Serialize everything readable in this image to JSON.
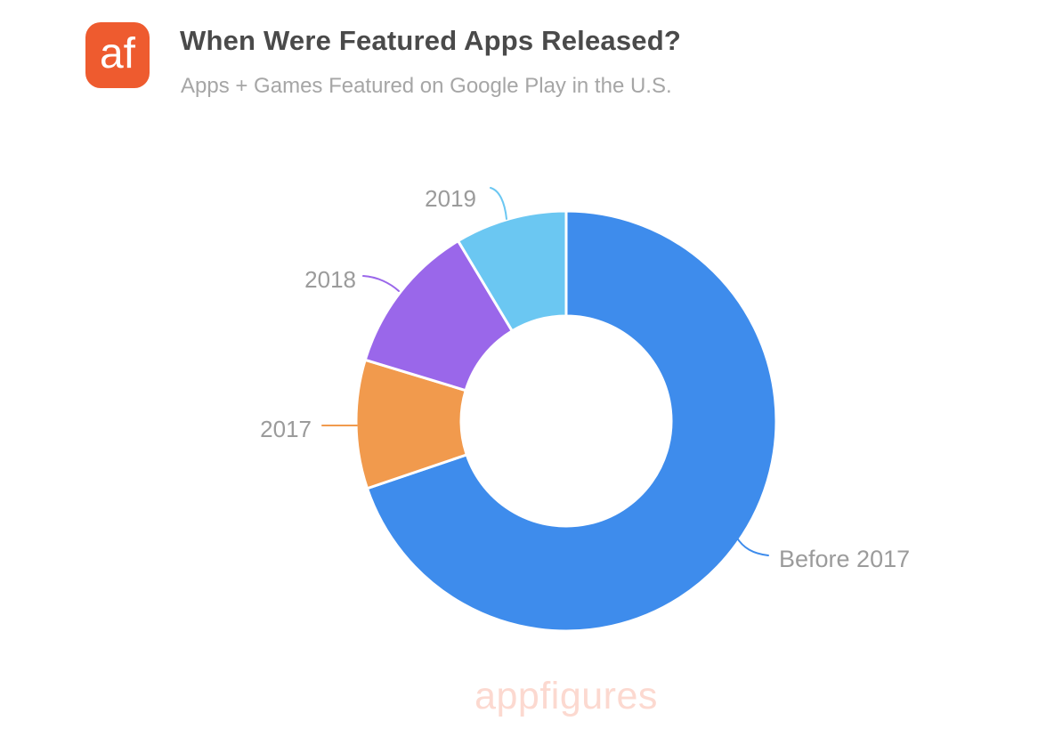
{
  "header": {
    "logo_text": "af",
    "logo_color": "#ee5b2f",
    "title": "When Were Featured Apps Released?",
    "subtitle": "Apps + Games Featured on Google Play in the U.S.",
    "title_color": "#4a4a4a",
    "subtitle_color": "#a6a6a6"
  },
  "chart_data": {
    "type": "pie",
    "subtype": "donut",
    "title": "When Were Featured Apps Released?",
    "subtitle": "Apps + Games Featured on Google Play in the U.S.",
    "unit": "percent-of-circle",
    "direction": "clockwise",
    "start_angle_deg": 0,
    "inner_radius_ratio": 0.5,
    "legend_position": "none",
    "annotation_style": "callout labels with colored leader lines",
    "labels": [
      "Before 2017",
      "2017",
      "2018",
      "2019"
    ],
    "values": [
      69.8,
      9.9,
      11.7,
      8.6
    ],
    "colors": [
      "#3e8cec",
      "#f19a4d",
      "#9a67ea",
      "#6bc7f2"
    ],
    "gap_color": "#ffffff",
    "label_color": "#9b9b9b"
  },
  "watermark": {
    "text": "appfigures",
    "color": "#fcd9d0"
  }
}
